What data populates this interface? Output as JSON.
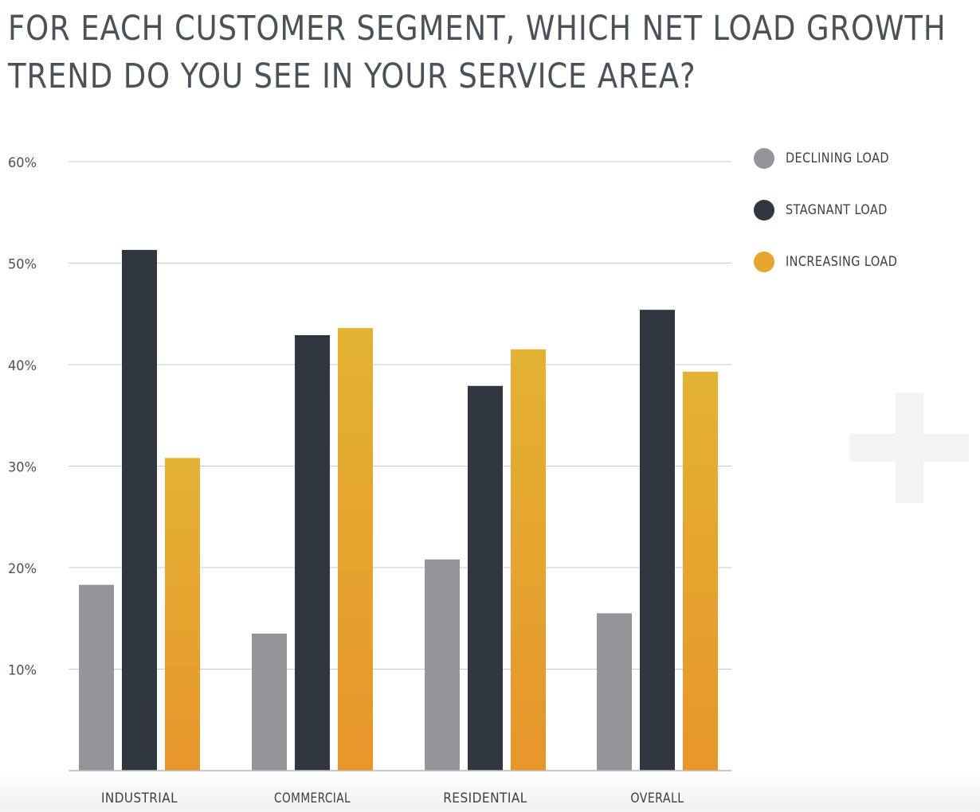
{
  "title_lines": [
    "FOR EACH CUSTOMER SEGMENT, WHICH NET LOAD GROWTH",
    "TREND DO YOU SEE IN YOUR SERVICE AREA?"
  ],
  "colors": {
    "declining": "#949598",
    "stagnant": "#303740",
    "increasing_top": "#e3b233",
    "increasing_bottom": "#e8962a",
    "grid": "#c9c9c9",
    "tick_text": "#4a5158",
    "legend_increasing": "#e8a42e"
  },
  "legend": [
    {
      "label": "DECLINING LOAD",
      "color": "#949598"
    },
    {
      "label": "STAGNANT LOAD",
      "color": "#303740"
    },
    {
      "label": "INCREASING LOAD",
      "color": "#e8a42e"
    }
  ],
  "chart_data": {
    "type": "bar",
    "title": "FOR EACH CUSTOMER SEGMENT, WHICH NET LOAD GROWTH TREND DO YOU SEE IN YOUR SERVICE AREA?",
    "categories": [
      "INDUSTRIAL",
      "COMMERCIAL",
      "RESIDENTIAL",
      "OVERALL"
    ],
    "series": [
      {
        "name": "DECLINING LOAD",
        "values": [
          18.3,
          13.5,
          20.8,
          15.5
        ]
      },
      {
        "name": "STAGNANT LOAD",
        "values": [
          51.3,
          42.9,
          37.9,
          45.4
        ]
      },
      {
        "name": "INCREASING LOAD",
        "values": [
          30.8,
          43.6,
          41.5,
          39.3
        ]
      }
    ],
    "y_ticks": [
      {
        "value": 10,
        "label": "10%"
      },
      {
        "value": 20,
        "label": "20%"
      },
      {
        "value": 30,
        "label": "30%"
      },
      {
        "value": 40,
        "label": "40%"
      },
      {
        "value": 50,
        "label": "50%"
      },
      {
        "value": 60,
        "label": "60%"
      }
    ],
    "ylim": [
      0,
      60
    ],
    "xlabel": "",
    "ylabel": "",
    "grid": true,
    "legend_position": "right"
  }
}
